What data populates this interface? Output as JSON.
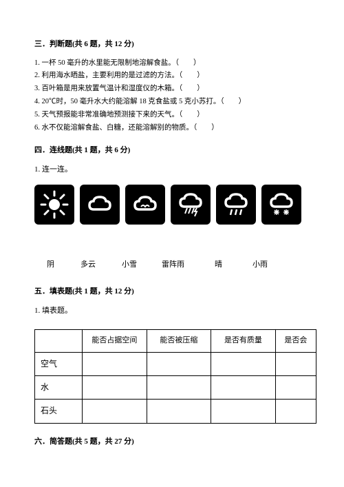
{
  "section3": {
    "header": "三．判断题(共 6 题，共 12 分)",
    "items": [
      "1. 一杯 50 毫升的水里能无限制地溶解食盐。（　　）",
      "2. 利用海水晒盐，主要利用的是过滤的方法。（　　）",
      "3. 百叶箱是用来放置气温计和湿度仪的木箱。（　　）",
      "4. 20℃时，50 毫升水大约能溶解 18 克食盐或 5 克小苏打。（　　）",
      "5. 天气预报能非常准确地预测接下来的天气。（　　）",
      "6. 水不仅能溶解食盐、白糖，还能溶解别的物质。（　　）"
    ]
  },
  "section4": {
    "header": "四．连线题(共 1 题，共 6 分)",
    "prompt": "1. 连一连。",
    "icons": [
      {
        "name": "sun-icon"
      },
      {
        "name": "cloud-icon"
      },
      {
        "name": "overcast-icon"
      },
      {
        "name": "thunder-icon"
      },
      {
        "name": "rain-icon"
      },
      {
        "name": "snow-icon"
      }
    ],
    "labels": [
      "阴",
      "多云",
      "小雪",
      "雷阵雨",
      "晴",
      "小雨"
    ],
    "label_gaps": [
      0,
      38,
      38,
      36,
      44,
      44
    ]
  },
  "section5": {
    "header": "五．填表题(共 1 题，共 12 分)",
    "prompt": "1. 填表题。",
    "table": {
      "columns": [
        "",
        "能否占据空间",
        "能否被压缩",
        "是否有质量",
        "是否会"
      ],
      "col_widths": [
        "70px",
        "95px",
        "95px",
        "95px",
        "60px"
      ],
      "rows": [
        "空气",
        "水",
        "石头"
      ]
    }
  },
  "section6": {
    "header": "六．简答题(共 5 题，共 27 分)"
  }
}
